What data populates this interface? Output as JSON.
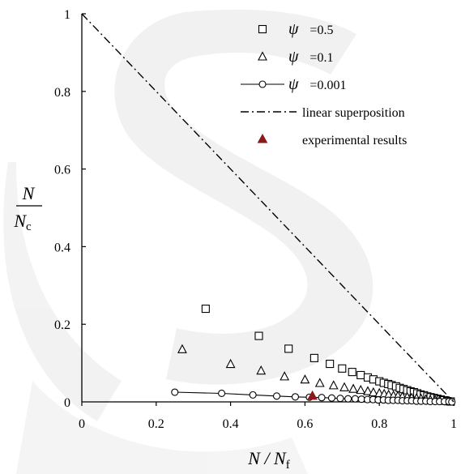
{
  "chart_data": {
    "type": "scatter",
    "xlabel": {
      "main": "N / N",
      "sub": "f"
    },
    "ylabel": {
      "numerator": "N",
      "denominator": "N",
      "sub": "c"
    },
    "xlim": [
      0,
      1
    ],
    "ylim": [
      0,
      1
    ],
    "x_ticks": [
      "0",
      "0.2",
      "0.4",
      "0.6",
      "0.8",
      "1"
    ],
    "y_ticks": [
      "0",
      "0.2",
      "0.4",
      "0.6",
      "0.8",
      "1"
    ],
    "grid": false,
    "legend_position": "top-right",
    "series": [
      {
        "name": "ψ =0.5",
        "symbol": "ψ",
        "value_label": "=0.5",
        "marker": "square",
        "points": [
          [
            0.333,
            0.24
          ],
          [
            0.476,
            0.17
          ],
          [
            0.556,
            0.137
          ],
          [
            0.625,
            0.113
          ],
          [
            0.667,
            0.098
          ],
          [
            0.7,
            0.086
          ],
          [
            0.727,
            0.077
          ],
          [
            0.75,
            0.069
          ],
          [
            0.769,
            0.063
          ],
          [
            0.784,
            0.058
          ],
          [
            0.8,
            0.053
          ],
          [
            0.812,
            0.049
          ],
          [
            0.824,
            0.046
          ],
          [
            0.833,
            0.043
          ],
          [
            0.845,
            0.04
          ],
          [
            0.855,
            0.036
          ],
          [
            0.865,
            0.033
          ],
          [
            0.875,
            0.03
          ],
          [
            0.884,
            0.027
          ],
          [
            0.893,
            0.025
          ],
          [
            0.902,
            0.022
          ],
          [
            0.911,
            0.019
          ],
          [
            0.92,
            0.017
          ],
          [
            0.929,
            0.014
          ],
          [
            0.938,
            0.012
          ],
          [
            0.947,
            0.01
          ],
          [
            0.956,
            0.008
          ],
          [
            0.965,
            0.006
          ],
          [
            0.974,
            0.004
          ],
          [
            0.983,
            0.002
          ],
          [
            0.992,
            0.001
          ]
        ]
      },
      {
        "name": "ψ =0.1",
        "symbol": "ψ",
        "value_label": "=0.1",
        "marker": "triangle",
        "points": [
          [
            0.27,
            0.135
          ],
          [
            0.4,
            0.097
          ],
          [
            0.482,
            0.08
          ],
          [
            0.545,
            0.065
          ],
          [
            0.6,
            0.057
          ],
          [
            0.64,
            0.048
          ],
          [
            0.677,
            0.042
          ],
          [
            0.706,
            0.037
          ],
          [
            0.73,
            0.033
          ],
          [
            0.75,
            0.03
          ],
          [
            0.769,
            0.027
          ],
          [
            0.784,
            0.024
          ],
          [
            0.8,
            0.022
          ],
          [
            0.813,
            0.02
          ],
          [
            0.825,
            0.018
          ],
          [
            0.838,
            0.016
          ],
          [
            0.85,
            0.015
          ],
          [
            0.862,
            0.013
          ],
          [
            0.875,
            0.012
          ],
          [
            0.887,
            0.01
          ],
          [
            0.9,
            0.009
          ],
          [
            0.912,
            0.008
          ],
          [
            0.925,
            0.006
          ],
          [
            0.937,
            0.005
          ],
          [
            0.95,
            0.004
          ],
          [
            0.962,
            0.003
          ],
          [
            0.975,
            0.002
          ],
          [
            0.987,
            0.001
          ]
        ]
      },
      {
        "name": "ψ =0.001",
        "symbol": "ψ",
        "value_label": "=0.001",
        "marker": "circle-line",
        "points": [
          [
            0.25,
            0.025
          ],
          [
            0.376,
            0.022
          ],
          [
            0.46,
            0.018
          ],
          [
            0.524,
            0.015
          ],
          [
            0.574,
            0.013
          ],
          [
            0.612,
            0.012
          ],
          [
            0.645,
            0.011
          ],
          [
            0.672,
            0.01
          ],
          [
            0.695,
            0.009
          ],
          [
            0.716,
            0.008
          ],
          [
            0.735,
            0.008
          ],
          [
            0.752,
            0.007
          ],
          [
            0.768,
            0.006
          ],
          [
            0.783,
            0.006
          ],
          [
            0.797,
            0.005
          ],
          [
            0.811,
            0.005
          ],
          [
            0.824,
            0.004
          ],
          [
            0.837,
            0.004
          ],
          [
            0.85,
            0.004
          ],
          [
            0.862,
            0.003
          ],
          [
            0.875,
            0.003
          ],
          [
            0.887,
            0.003
          ],
          [
            0.9,
            0.002
          ],
          [
            0.912,
            0.002
          ],
          [
            0.925,
            0.002
          ],
          [
            0.937,
            0.001
          ],
          [
            0.95,
            0.001
          ],
          [
            0.962,
            0.001
          ],
          [
            0.975,
            0.001
          ],
          [
            0.987,
            0.001
          ],
          [
            0.995,
            0.0
          ]
        ]
      },
      {
        "name": "linear superposition",
        "marker": "dash-dot-line",
        "points": [
          [
            0,
            1
          ],
          [
            1,
            0
          ]
        ]
      },
      {
        "name": "experimental results",
        "marker": "filled-triangle",
        "color": "#8b1a1a",
        "points": [
          [
            0.62,
            0.015
          ]
        ]
      }
    ]
  }
}
